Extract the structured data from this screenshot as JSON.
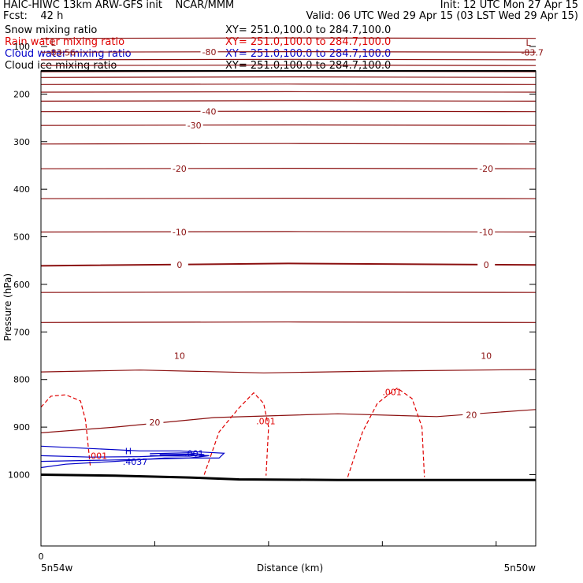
{
  "header": {
    "line1_left": "HAIC-HIWC 13km ARW-GFS init    NCAR/MMM",
    "line1_right": "Init: 12 UTC Mon 27 Apr 15",
    "line2_left": "Fcst:    42 h",
    "line2_right": "Valid: 06 UTC Wed 29 Apr 15 (03 LST Wed 29 Apr 15)",
    "fields": [
      {
        "name": "Snow mixing ratio",
        "xy": "XY= 251.0,100.0 to 284.7,100.0",
        "color": "#000000"
      },
      {
        "name": "Rain water mixing ratio",
        "xy": "XY= 251.0,100.0 to 284.7,100.0",
        "color": "#e00000"
      },
      {
        "name": "Cloud water mixing ratio",
        "xy": "XY= 251.0,100.0 to 284.7,100.0",
        "color": "#0000c8"
      },
      {
        "name": "Cloud ice mixing ratio",
        "xy": "XY= 251.0,100.0 to 284.7,100.0",
        "color": "#000000"
      }
    ]
  },
  "colors": {
    "temperature": "#8b1010",
    "rain": "#e00000",
    "cloud_water": "#0000c8",
    "ground": "#000000"
  },
  "chart_data": {
    "type": "line",
    "title": "",
    "xlabel": "Distance (km)",
    "ylabel": "Pressure (hPa)",
    "x_tick_labels": [
      "0"
    ],
    "x_end_labels": {
      "left": "5n54w",
      "right": "5n50w"
    },
    "y_ticks": [
      100,
      200,
      300,
      400,
      500,
      600,
      700,
      800,
      900,
      1000
    ],
    "ylim": [
      1040,
      65
    ],
    "xlim": [
      0,
      100
    ],
    "temperature_contours": [
      {
        "p": 83,
        "label": ""
      },
      {
        "p": 112,
        "label": "-80"
      },
      {
        "p": 128,
        "label": ""
      },
      {
        "p": 140,
        "label": ""
      },
      {
        "p": 153,
        "label": ""
      },
      {
        "p": 165,
        "label": ""
      },
      {
        "p": 180,
        "label": ""
      },
      {
        "p": 196,
        "label": ""
      },
      {
        "p": 215,
        "label": ""
      },
      {
        "p": 237,
        "label": "-40"
      },
      {
        "p": 266,
        "label": "-30"
      },
      {
        "p": 305,
        "label": ""
      },
      {
        "p": 357,
        "label": "-20"
      },
      {
        "p": 420,
        "label": ""
      },
      {
        "p": 490,
        "label": "-10"
      },
      {
        "p": 559,
        "label": "0"
      },
      {
        "p": 617,
        "label": ""
      },
      {
        "p": 680,
        "label": ""
      },
      {
        "p": 750,
        "label": "10"
      },
      {
        "p": 875,
        "label": "20"
      }
    ],
    "extrema": [
      {
        "kind": "L",
        "value": "83.56",
        "side": "left"
      },
      {
        "kind": "L",
        "value": "-83.7",
        "side": "right"
      },
      {
        "kind": "H",
        "value": ".4037",
        "side": "left"
      }
    ],
    "rain_labels": [
      ".001",
      ".001",
      ".001"
    ],
    "cloud_labels": [
      ".001"
    ]
  }
}
